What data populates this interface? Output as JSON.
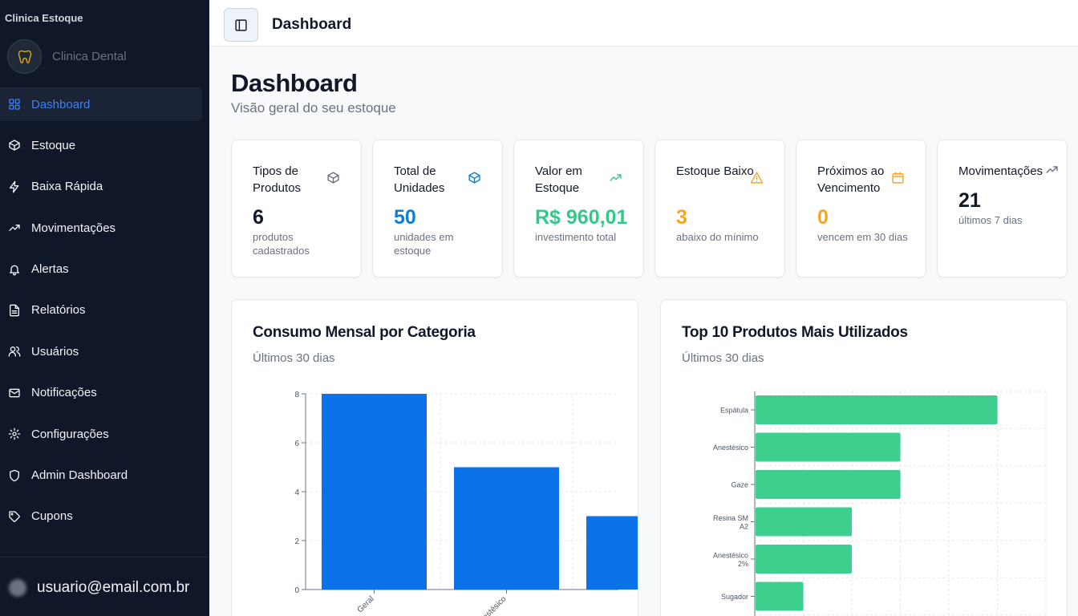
{
  "sidebar": {
    "brand": "Clinica Estoque",
    "clinic_name": "Clinica Dental",
    "items": [
      {
        "label": "Dashboard",
        "icon": "grid-icon",
        "active": true
      },
      {
        "label": "Estoque",
        "icon": "package-icon"
      },
      {
        "label": "Baixa Rápida",
        "icon": "zap-icon"
      },
      {
        "label": "Movimentações",
        "icon": "trending-up-icon"
      },
      {
        "label": "Alertas",
        "icon": "bell-icon"
      },
      {
        "label": "Relatórios",
        "icon": "file-text-icon"
      },
      {
        "label": "Usuários",
        "icon": "users-icon"
      },
      {
        "label": "Notificações",
        "icon": "mail-icon"
      },
      {
        "label": "Configurações",
        "icon": "settings-icon"
      },
      {
        "label": "Admin Dashboard",
        "icon": "shield-icon"
      },
      {
        "label": "Cupons",
        "icon": "tag-icon"
      }
    ],
    "user_email": "usuario@email.com.br"
  },
  "topbar": {
    "title": "Dashboard"
  },
  "header": {
    "title": "Dashboard",
    "subtitle": "Visão geral do seu estoque"
  },
  "stats": [
    {
      "label": "Tipos de Produtos",
      "value": "6",
      "desc": "produtos cadastrados",
      "icon": "package-icon",
      "color": "#6b7280"
    },
    {
      "label": "Total de Unidades",
      "value": "50",
      "desc": "unidades em estoque",
      "icon": "box-icon",
      "color": "#0e7fd8"
    },
    {
      "label": "Valor em Estoque",
      "value": "R$ 960,01",
      "desc": "investimento total",
      "icon": "trending-up-icon",
      "color": "#34c98a"
    },
    {
      "label": "Estoque Baixo",
      "value": "3",
      "desc": "abaixo do mínimo",
      "icon": "alert-triangle-icon",
      "color": "#f5a623"
    },
    {
      "label": "Próximos ao Vencimento",
      "value": "0",
      "desc": "vencem em 30 dias",
      "icon": "calendar-icon",
      "color": "#f5a623"
    },
    {
      "label": "Movimentações",
      "value": "21",
      "desc": "últimos 7 dias",
      "icon": "trending-up-icon",
      "color": "#111827"
    }
  ],
  "charts": {
    "consumo": {
      "title": "Consumo Mensal por Categoria",
      "subtitle": "Últimos 30 dias"
    },
    "top10": {
      "title": "Top 10 Produtos Mais Utilizados",
      "subtitle": "Últimos 30 dias"
    }
  },
  "chart_data": [
    {
      "type": "bar",
      "orientation": "vertical",
      "categories": [
        "Geral",
        "Anestésico",
        ""
      ],
      "tick_labels_visible": [
        "Geral",
        "...estésico",
        ""
      ],
      "values": [
        8,
        5,
        3
      ],
      "ylim": [
        0,
        8
      ],
      "yticks": [
        0,
        2,
        4,
        6,
        8
      ],
      "color": "#0b72e7",
      "grid": true
    },
    {
      "type": "bar",
      "orientation": "horizontal",
      "categories": [
        "Espátula",
        "Anestésico",
        "Gaze",
        "Resina SM A2",
        "Anestésico 2%",
        "Sugador"
      ],
      "tick_labels_visible": [
        [
          "Espátula"
        ],
        [
          "Anestésico"
        ],
        [
          "Gaze"
        ],
        [
          "Resina SM",
          "A2"
        ],
        [
          "Anestésico",
          "2%"
        ],
        [
          "Sugador"
        ]
      ],
      "values": [
        5,
        3,
        3,
        2,
        2,
        1
      ],
      "xlim": [
        0,
        6
      ],
      "color": "#3ccf8e",
      "grid": true
    }
  ]
}
